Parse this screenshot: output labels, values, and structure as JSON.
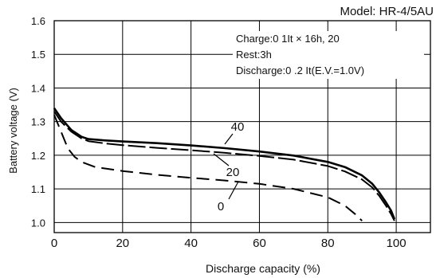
{
  "chart_data": {
    "type": "line",
    "title": "Model: HR-4/5AU",
    "xlabel": "Discharge capacity (%)",
    "ylabel": "Battery voltage (V)",
    "xlim": [
      0,
      110
    ],
    "ylim": [
      0.97,
      1.6
    ],
    "x_ticks": [
      "0",
      "20",
      "40",
      "60",
      "80",
      "100"
    ],
    "y_ticks": [
      "1.0",
      "1.1",
      "1.2",
      "1.3",
      "1.4",
      "1.5",
      "1.6"
    ],
    "grid": true,
    "annotations": [
      "Charge:0 1It × 16h, 20",
      "Rest:3h",
      "Discharge:0 .2 It(E.V.=1.0V)"
    ],
    "series": [
      {
        "name": "40",
        "points": [
          [
            0,
            1.34
          ],
          [
            2,
            1.31
          ],
          [
            5,
            1.275
          ],
          [
            8,
            1.255
          ],
          [
            10,
            1.248
          ],
          [
            15,
            1.244
          ],
          [
            20,
            1.241
          ],
          [
            30,
            1.236
          ],
          [
            40,
            1.229
          ],
          [
            50,
            1.221
          ],
          [
            60,
            1.211
          ],
          [
            70,
            1.199
          ],
          [
            80,
            1.18
          ],
          [
            85,
            1.165
          ],
          [
            90,
            1.14
          ],
          [
            93,
            1.115
          ],
          [
            95,
            1.09
          ],
          [
            97,
            1.06
          ],
          [
            98.5,
            1.035
          ],
          [
            99.5,
            1.01
          ]
        ]
      },
      {
        "name": "20",
        "points": [
          [
            0,
            1.33
          ],
          [
            2,
            1.3
          ],
          [
            5,
            1.27
          ],
          [
            8,
            1.25
          ],
          [
            10,
            1.242
          ],
          [
            15,
            1.235
          ],
          [
            20,
            1.23
          ],
          [
            30,
            1.222
          ],
          [
            40,
            1.215
          ],
          [
            50,
            1.207
          ],
          [
            60,
            1.198
          ],
          [
            70,
            1.187
          ],
          [
            80,
            1.168
          ],
          [
            85,
            1.152
          ],
          [
            90,
            1.128
          ],
          [
            93,
            1.104
          ],
          [
            95,
            1.08
          ],
          [
            97,
            1.05
          ],
          [
            98.5,
            1.025
          ],
          [
            99.5,
            1.005
          ]
        ]
      },
      {
        "name": "0",
        "points": [
          [
            0,
            1.32
          ],
          [
            2,
            1.27
          ],
          [
            4,
            1.22
          ],
          [
            6,
            1.195
          ],
          [
            8,
            1.18
          ],
          [
            12,
            1.165
          ],
          [
            20,
            1.153
          ],
          [
            30,
            1.142
          ],
          [
            40,
            1.133
          ],
          [
            50,
            1.125
          ],
          [
            60,
            1.115
          ],
          [
            70,
            1.1
          ],
          [
            80,
            1.075
          ],
          [
            85,
            1.05
          ],
          [
            88,
            1.025
          ],
          [
            90,
            1.005
          ]
        ]
      }
    ]
  }
}
